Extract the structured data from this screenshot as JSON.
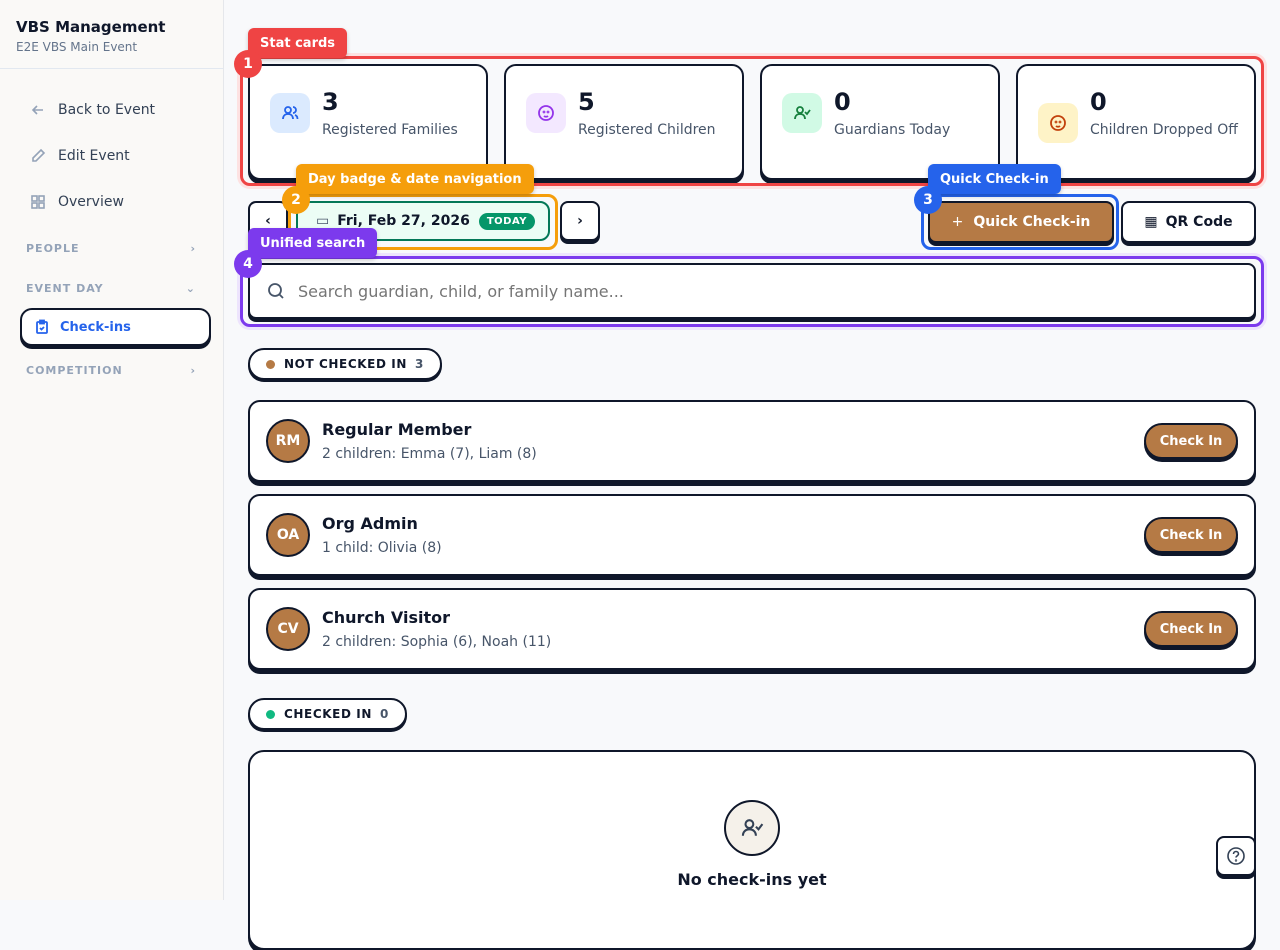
{
  "sidebar": {
    "title": "VBS Management",
    "subtitle": "E2E VBS Main Event",
    "items": [
      {
        "label": "Back to Event",
        "icon": "arrow-left-icon"
      },
      {
        "label": "Edit Event",
        "icon": "pencil-icon"
      },
      {
        "label": "Overview",
        "icon": "grid-icon"
      }
    ],
    "sections": {
      "people": "PEOPLE",
      "event_day": "EVENT DAY",
      "competition": "COMPETITION"
    },
    "active_item": "Check-ins"
  },
  "stats": [
    {
      "value": "3",
      "label": "Registered Families",
      "color": "#2563eb",
      "bg": "#dbeafe"
    },
    {
      "value": "5",
      "label": "Registered Children",
      "color": "#9333ea",
      "bg": "#f3e8ff"
    },
    {
      "value": "0",
      "label": "Guardians Today",
      "color": "#15803d",
      "bg": "#d1fae5"
    },
    {
      "value": "0",
      "label": "Children Dropped Off",
      "color": "#c2410c",
      "bg": "#fef3c7"
    }
  ],
  "date": {
    "label": "Fri, Feb 27, 2026",
    "badge": "TODAY"
  },
  "actions": {
    "quick_checkin": "Quick Check-in",
    "qr_code": "QR Code"
  },
  "search": {
    "placeholder": "Search guardian, child, or family name..."
  },
  "not_checked_in": {
    "label": "NOT CHECKED IN",
    "count": "3",
    "families": [
      {
        "initials": "RM",
        "name": "Regular Member",
        "detail": "2 children: Emma (7), Liam (8)",
        "action": "Check In"
      },
      {
        "initials": "OA",
        "name": "Org Admin",
        "detail": "1 child: Olivia (8)",
        "action": "Check In"
      },
      {
        "initials": "CV",
        "name": "Church Visitor",
        "detail": "2 children: Sophia (6), Noah (11)",
        "action": "Check In"
      }
    ]
  },
  "checked_in": {
    "label": "CHECKED IN",
    "count": "0",
    "empty": "No check-ins yet"
  },
  "annotations": [
    {
      "num": "1",
      "label": "Stat cards",
      "color": "#ef4444"
    },
    {
      "num": "2",
      "label": "Day badge & date navigation",
      "color": "#f59e0b"
    },
    {
      "num": "3",
      "label": "Quick Check-in",
      "color": "#2563eb"
    },
    {
      "num": "4",
      "label": "Unified search",
      "color": "#7c3aed"
    }
  ]
}
